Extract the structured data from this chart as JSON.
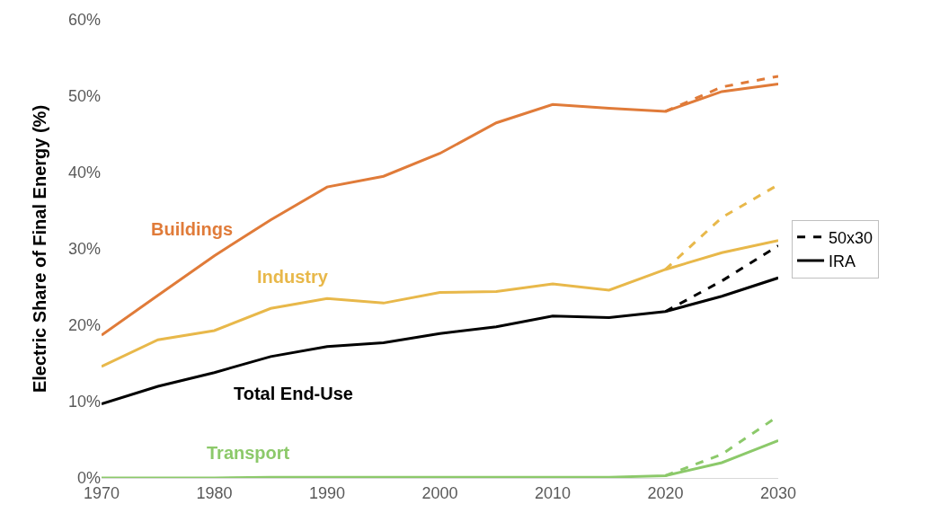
{
  "chart_data": {
    "type": "line",
    "ylabel": "Electric Share of Final Energy (%)",
    "x": [
      1970,
      1975,
      1980,
      1985,
      1990,
      1995,
      2000,
      2005,
      2010,
      2015,
      2020,
      2025,
      2030
    ],
    "series": [
      {
        "name": "50x30",
        "color": "#000000",
        "line_style": "dashed",
        "x": [
          2020,
          2025,
          2030
        ],
        "values": [
          21.8,
          25.8,
          30.4
        ]
      },
      {
        "name": "IRA",
        "color": "#000000",
        "line_style": "solid",
        "values": [
          9.7,
          12.0,
          13.8,
          15.9,
          17.2,
          17.7,
          18.9,
          19.8,
          21.2,
          21.0,
          21.8,
          23.8,
          26.2
        ]
      },
      {
        "color": "#e07b39",
        "line_style": "dashed",
        "x": [
          2020,
          2025,
          2030
        ],
        "values": [
          48.0,
          51.2,
          52.6
        ]
      },
      {
        "name": "Buildings",
        "color": "#e07b39",
        "line_style": "solid",
        "values": [
          18.7,
          23.9,
          29.1,
          33.8,
          38.1,
          39.5,
          42.5,
          46.5,
          48.9,
          48.4,
          48.0,
          50.6,
          51.6
        ]
      },
      {
        "color": "#e8b84a",
        "line_style": "dashed",
        "x": [
          2020,
          2025,
          2030
        ],
        "values": [
          27.3,
          34.1,
          38.4
        ]
      },
      {
        "name": "Industry",
        "color": "#e8b84a",
        "line_style": "solid",
        "values": [
          14.6,
          18.1,
          19.3,
          22.2,
          23.5,
          22.9,
          24.3,
          24.4,
          25.4,
          24.6,
          27.3,
          29.5,
          31.1
        ]
      },
      {
        "color": "#8cc96a",
        "line_style": "dashed",
        "x": [
          2020,
          2025,
          2030
        ],
        "values": [
          0.3,
          3.1,
          8.1
        ]
      },
      {
        "name": "Transport",
        "color": "#8cc96a",
        "line_style": "solid",
        "values": [
          0.0,
          0.0,
          0.0,
          0.1,
          0.1,
          0.1,
          0.1,
          0.1,
          0.1,
          0.1,
          0.3,
          2.0,
          4.9
        ]
      }
    ],
    "annotations": [
      "Total End-Use"
    ],
    "xlim": [
      1970,
      2030
    ],
    "xticks": [
      1970,
      1980,
      1990,
      2000,
      2010,
      2020,
      2030
    ],
    "ylim": [
      0,
      60
    ],
    "yticks": [
      {
        "value": 0,
        "label": "0%"
      },
      {
        "value": 10,
        "label": "10%"
      },
      {
        "value": 20,
        "label": "20%"
      },
      {
        "value": 30,
        "label": "30%"
      },
      {
        "value": 40,
        "label": "40%"
      },
      {
        "value": 50,
        "label": "50%"
      },
      {
        "value": 60,
        "label": "60%"
      }
    ],
    "legend": "right"
  }
}
